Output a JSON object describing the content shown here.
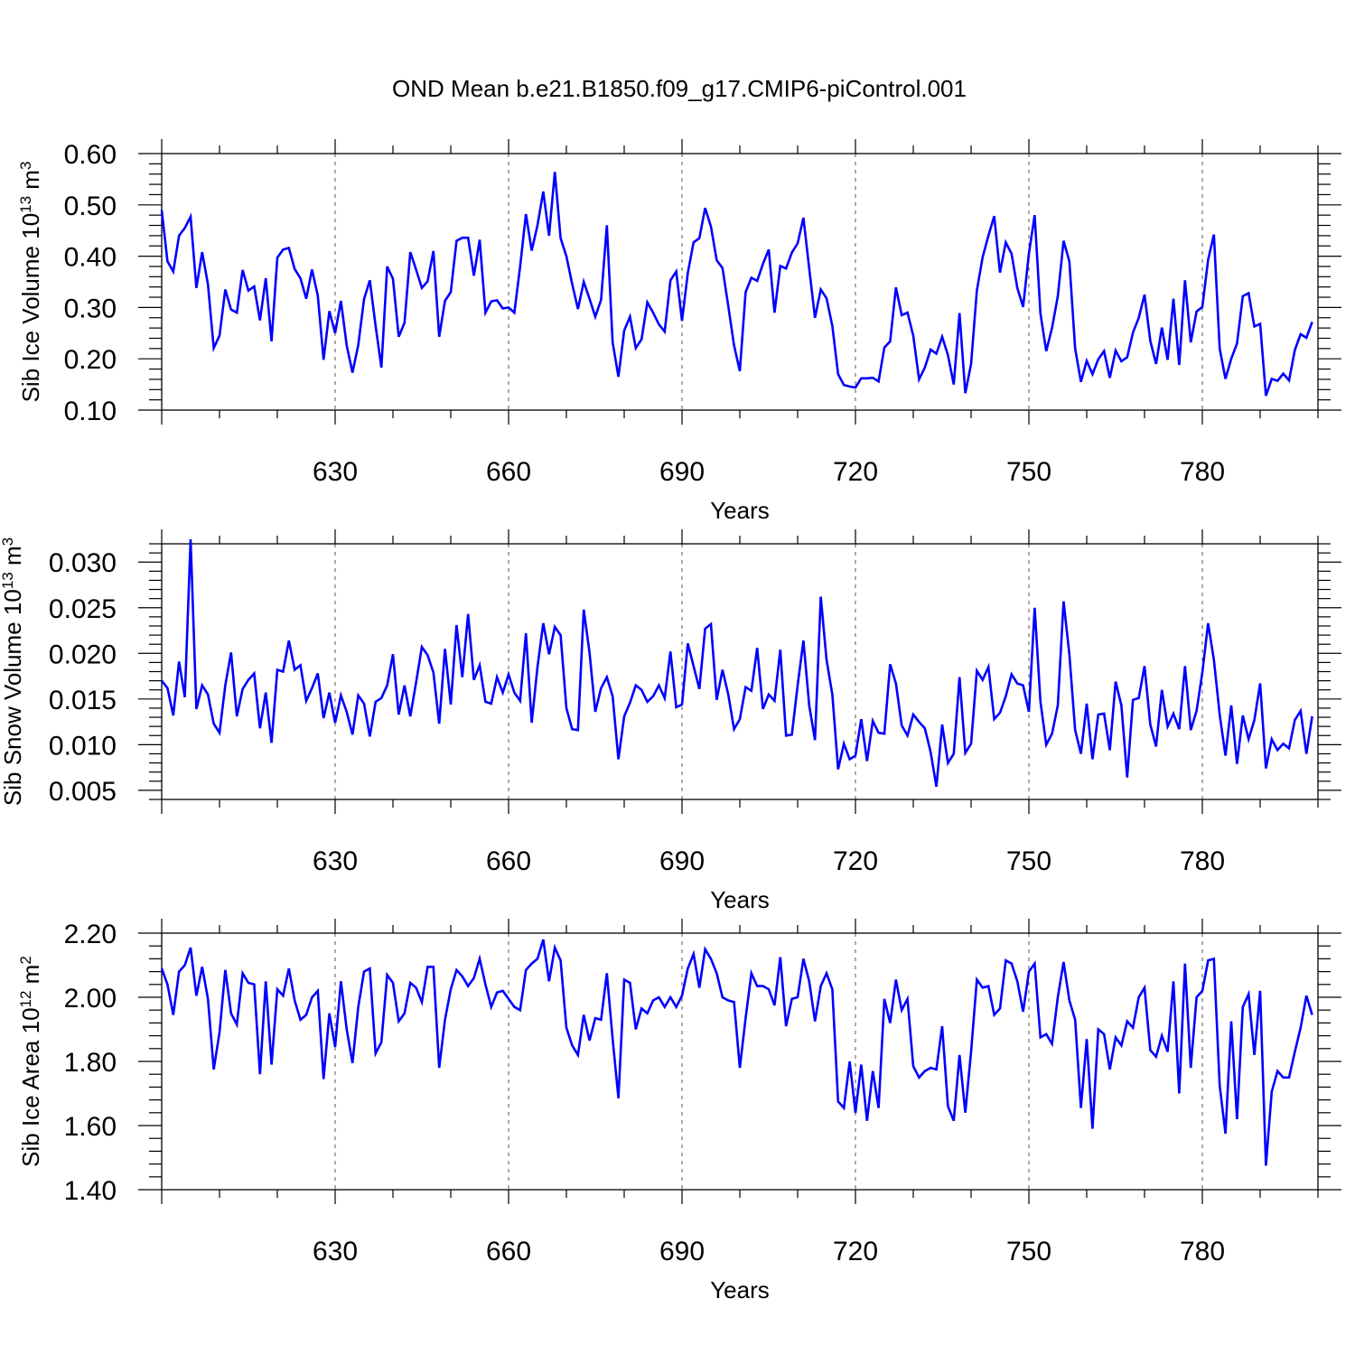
{
  "title": "OND Mean b.e21.B1850.f09_g17.CMIP6-piControl.001",
  "line_color": "#0000ff",
  "chart_data": [
    {
      "type": "line",
      "ylabel": "Sib Ice Volume 10",
      "ylabel_exp": "13",
      "ylabel_unit": " m",
      "ylabel_unit_exp": "3",
      "xlabel": "Years",
      "xlim": [
        600,
        800
      ],
      "ylim": [
        0.1,
        0.6
      ],
      "yticks": [
        "0.10",
        "0.20",
        "0.30",
        "0.40",
        "0.50",
        "0.60"
      ],
      "xticks": [
        630,
        660,
        690,
        720,
        750,
        780
      ],
      "grid_x": "dashed",
      "x_start": 600,
      "values": [
        0.49,
        0.39,
        0.37,
        0.44,
        0.455,
        0.477,
        0.338,
        0.408,
        0.345,
        0.221,
        0.245,
        0.335,
        0.296,
        0.29,
        0.373,
        0.333,
        0.341,
        0.275,
        0.357,
        0.234,
        0.397,
        0.413,
        0.416,
        0.375,
        0.357,
        0.317,
        0.374,
        0.323,
        0.198,
        0.293,
        0.25,
        0.313,
        0.226,
        0.173,
        0.227,
        0.316,
        0.353,
        0.264,
        0.183,
        0.38,
        0.356,
        0.243,
        0.27,
        0.408,
        0.374,
        0.338,
        0.351,
        0.41,
        0.243,
        0.313,
        0.33,
        0.43,
        0.436,
        0.436,
        0.362,
        0.432,
        0.29,
        0.312,
        0.314,
        0.298,
        0.3,
        0.29,
        0.38,
        0.482,
        0.411,
        0.46,
        0.526,
        0.44,
        0.564,
        0.435,
        0.4,
        0.346,
        0.297,
        0.35,
        0.317,
        0.282,
        0.315,
        0.46,
        0.232,
        0.165,
        0.255,
        0.282,
        0.221,
        0.238,
        0.31,
        0.29,
        0.267,
        0.253,
        0.353,
        0.37,
        0.274,
        0.367,
        0.427,
        0.435,
        0.494,
        0.458,
        0.392,
        0.377,
        0.303,
        0.226,
        0.176,
        0.33,
        0.358,
        0.352,
        0.385,
        0.413,
        0.29,
        0.381,
        0.376,
        0.407,
        0.425,
        0.475,
        0.376,
        0.28,
        0.335,
        0.318,
        0.264,
        0.17,
        0.149,
        0.146,
        0.144,
        0.162,
        0.162,
        0.163,
        0.156,
        0.222,
        0.234,
        0.339,
        0.285,
        0.29,
        0.245,
        0.16,
        0.183,
        0.218,
        0.21,
        0.243,
        0.207,
        0.15,
        0.289,
        0.133,
        0.19,
        0.333,
        0.398,
        0.44,
        0.478,
        0.368,
        0.427,
        0.405,
        0.338,
        0.301,
        0.405,
        0.48,
        0.288,
        0.215,
        0.26,
        0.322,
        0.43,
        0.39,
        0.22,
        0.155,
        0.196,
        0.17,
        0.199,
        0.215,
        0.163,
        0.216,
        0.195,
        0.203,
        0.251,
        0.28,
        0.325,
        0.235,
        0.19,
        0.261,
        0.198,
        0.317,
        0.188,
        0.353,
        0.232,
        0.292,
        0.301,
        0.393,
        0.442,
        0.22,
        0.161,
        0.2,
        0.23,
        0.322,
        0.328,
        0.263,
        0.268,
        0.128,
        0.161,
        0.157,
        0.171,
        0.158,
        0.217,
        0.248,
        0.241,
        0.272
      ]
    },
    {
      "type": "line",
      "ylabel": "Sib Snow Volume 10",
      "ylabel_exp": "13",
      "ylabel_unit": " m",
      "ylabel_unit_exp": "3",
      "xlabel": "Years",
      "xlim": [
        600,
        800
      ],
      "ylim": [
        0.004,
        0.032
      ],
      "yticks": [
        "0.005",
        "0.010",
        "0.015",
        "0.020",
        "0.025",
        "0.030"
      ],
      "ytick_values": [
        0.005,
        0.01,
        0.015,
        0.02,
        0.025,
        0.03
      ],
      "xticks": [
        630,
        660,
        690,
        720,
        750,
        780
      ],
      "grid_x": "dashed",
      "x_start": 600,
      "values": [
        0.017,
        0.0162,
        0.0132,
        0.0191,
        0.0152,
        0.0325,
        0.0139,
        0.0165,
        0.0155,
        0.0123,
        0.0113,
        0.0165,
        0.0201,
        0.0131,
        0.0161,
        0.0171,
        0.0178,
        0.0118,
        0.0157,
        0.0102,
        0.0182,
        0.018,
        0.0214,
        0.0182,
        0.0187,
        0.0148,
        0.0162,
        0.0178,
        0.0129,
        0.0157,
        0.0124,
        0.0154,
        0.0136,
        0.0111,
        0.0154,
        0.0145,
        0.0109,
        0.0147,
        0.0151,
        0.0165,
        0.0199,
        0.0133,
        0.0165,
        0.0131,
        0.0168,
        0.0207,
        0.0198,
        0.0179,
        0.0123,
        0.0205,
        0.0144,
        0.0231,
        0.0174,
        0.0243,
        0.0171,
        0.0187,
        0.0147,
        0.0145,
        0.0174,
        0.0157,
        0.0177,
        0.0157,
        0.0148,
        0.0222,
        0.0124,
        0.0185,
        0.0233,
        0.0199,
        0.0229,
        0.022,
        0.014,
        0.0117,
        0.0116,
        0.0248,
        0.0201,
        0.0136,
        0.0162,
        0.0174,
        0.0153,
        0.0084,
        0.0131,
        0.0146,
        0.0165,
        0.016,
        0.0147,
        0.0153,
        0.0165,
        0.0151,
        0.0202,
        0.0141,
        0.0144,
        0.0211,
        0.0186,
        0.0161,
        0.0227,
        0.0232,
        0.0149,
        0.0182,
        0.0155,
        0.0117,
        0.0128,
        0.0163,
        0.0159,
        0.0206,
        0.0139,
        0.0155,
        0.0148,
        0.0204,
        0.011,
        0.0111,
        0.0165,
        0.0214,
        0.0143,
        0.0105,
        0.0262,
        0.0193,
        0.0155,
        0.0073,
        0.0101,
        0.0084,
        0.0088,
        0.0128,
        0.0082,
        0.0126,
        0.0113,
        0.0112,
        0.0188,
        0.0167,
        0.0121,
        0.011,
        0.0133,
        0.0125,
        0.0118,
        0.0092,
        0.0054,
        0.0122,
        0.008,
        0.009,
        0.0174,
        0.0091,
        0.0101,
        0.0181,
        0.0171,
        0.0185,
        0.0128,
        0.0135,
        0.0153,
        0.0177,
        0.0167,
        0.0165,
        0.0136,
        0.025,
        0.0147,
        0.01,
        0.0112,
        0.0143,
        0.0257,
        0.0199,
        0.0116,
        0.009,
        0.0145,
        0.0084,
        0.0133,
        0.0134,
        0.0094,
        0.0169,
        0.0143,
        0.0064,
        0.0149,
        0.0151,
        0.0186,
        0.0122,
        0.0098,
        0.016,
        0.012,
        0.0134,
        0.0117,
        0.0186,
        0.0116,
        0.0137,
        0.0179,
        0.0233,
        0.0193,
        0.0133,
        0.0088,
        0.0143,
        0.0079,
        0.0132,
        0.0106,
        0.0127,
        0.0167,
        0.0074,
        0.0106,
        0.0094,
        0.0101,
        0.0096,
        0.0127,
        0.0137,
        0.009,
        0.0131
      ]
    },
    {
      "type": "line",
      "ylabel": "Sib Ice Area 10",
      "ylabel_exp": "12",
      "ylabel_unit": " m",
      "ylabel_unit_exp": "2",
      "xlabel": "Years",
      "xlim": [
        600,
        800
      ],
      "ylim": [
        1.4,
        2.2
      ],
      "yticks": [
        "1.40",
        "1.60",
        "1.80",
        "2.00",
        "2.20"
      ],
      "xticks": [
        630,
        660,
        690,
        720,
        750,
        780
      ],
      "grid_x": "dashed",
      "x_start": 600,
      "values": [
        2.09,
        2.04,
        1.945,
        2.08,
        2.1,
        2.155,
        2.005,
        2.095,
        1.995,
        1.775,
        1.89,
        2.085,
        1.95,
        1.915,
        2.075,
        2.045,
        2.04,
        1.76,
        2.05,
        1.79,
        2.025,
        2.005,
        2.09,
        1.99,
        1.93,
        1.945,
        2.0,
        2.02,
        1.745,
        1.95,
        1.845,
        2.05,
        1.9,
        1.795,
        1.97,
        2.08,
        2.09,
        1.825,
        1.86,
        2.07,
        2.045,
        1.925,
        1.95,
        2.045,
        2.03,
        1.985,
        2.095,
        2.095,
        1.78,
        1.93,
        2.025,
        2.085,
        2.065,
        2.035,
        2.06,
        2.12,
        2.04,
        1.97,
        2.015,
        2.02,
        1.995,
        1.97,
        1.96,
        2.085,
        2.105,
        2.12,
        2.18,
        2.05,
        2.155,
        2.115,
        1.905,
        1.85,
        1.82,
        1.945,
        1.865,
        1.935,
        1.93,
        2.075,
        1.87,
        1.685,
        2.055,
        2.045,
        1.9,
        1.965,
        1.95,
        1.99,
        2.0,
        1.97,
        2.0,
        1.97,
        2.005,
        2.09,
        2.135,
        2.03,
        2.15,
        2.12,
        2.075,
        2.0,
        1.99,
        1.985,
        1.78,
        1.935,
        2.075,
        2.035,
        2.035,
        2.025,
        1.975,
        2.125,
        1.91,
        1.995,
        2.0,
        2.12,
        2.05,
        1.925,
        2.035,
        2.075,
        2.025,
        1.675,
        1.655,
        1.8,
        1.64,
        1.79,
        1.615,
        1.77,
        1.655,
        1.995,
        1.92,
        2.055,
        1.96,
        1.995,
        1.785,
        1.75,
        1.77,
        1.78,
        1.775,
        1.91,
        1.66,
        1.615,
        1.82,
        1.64,
        1.83,
        2.055,
        2.03,
        2.035,
        1.945,
        1.965,
        2.115,
        2.105,
        2.05,
        1.955,
        2.08,
        2.105,
        1.875,
        1.885,
        1.855,
        2.0,
        2.11,
        1.99,
        1.93,
        1.655,
        1.87,
        1.59,
        1.9,
        1.885,
        1.775,
        1.875,
        1.85,
        1.925,
        1.905,
        2.0,
        2.03,
        1.835,
        1.815,
        1.88,
        1.83,
        2.05,
        1.7,
        2.105,
        1.78,
        2.0,
        2.02,
        2.115,
        2.12,
        1.725,
        1.575,
        1.925,
        1.62,
        1.97,
        2.01,
        1.82,
        2.02,
        1.475,
        1.705,
        1.77,
        1.75,
        1.75,
        1.83,
        1.905,
        2.005,
        1.945
      ]
    }
  ]
}
